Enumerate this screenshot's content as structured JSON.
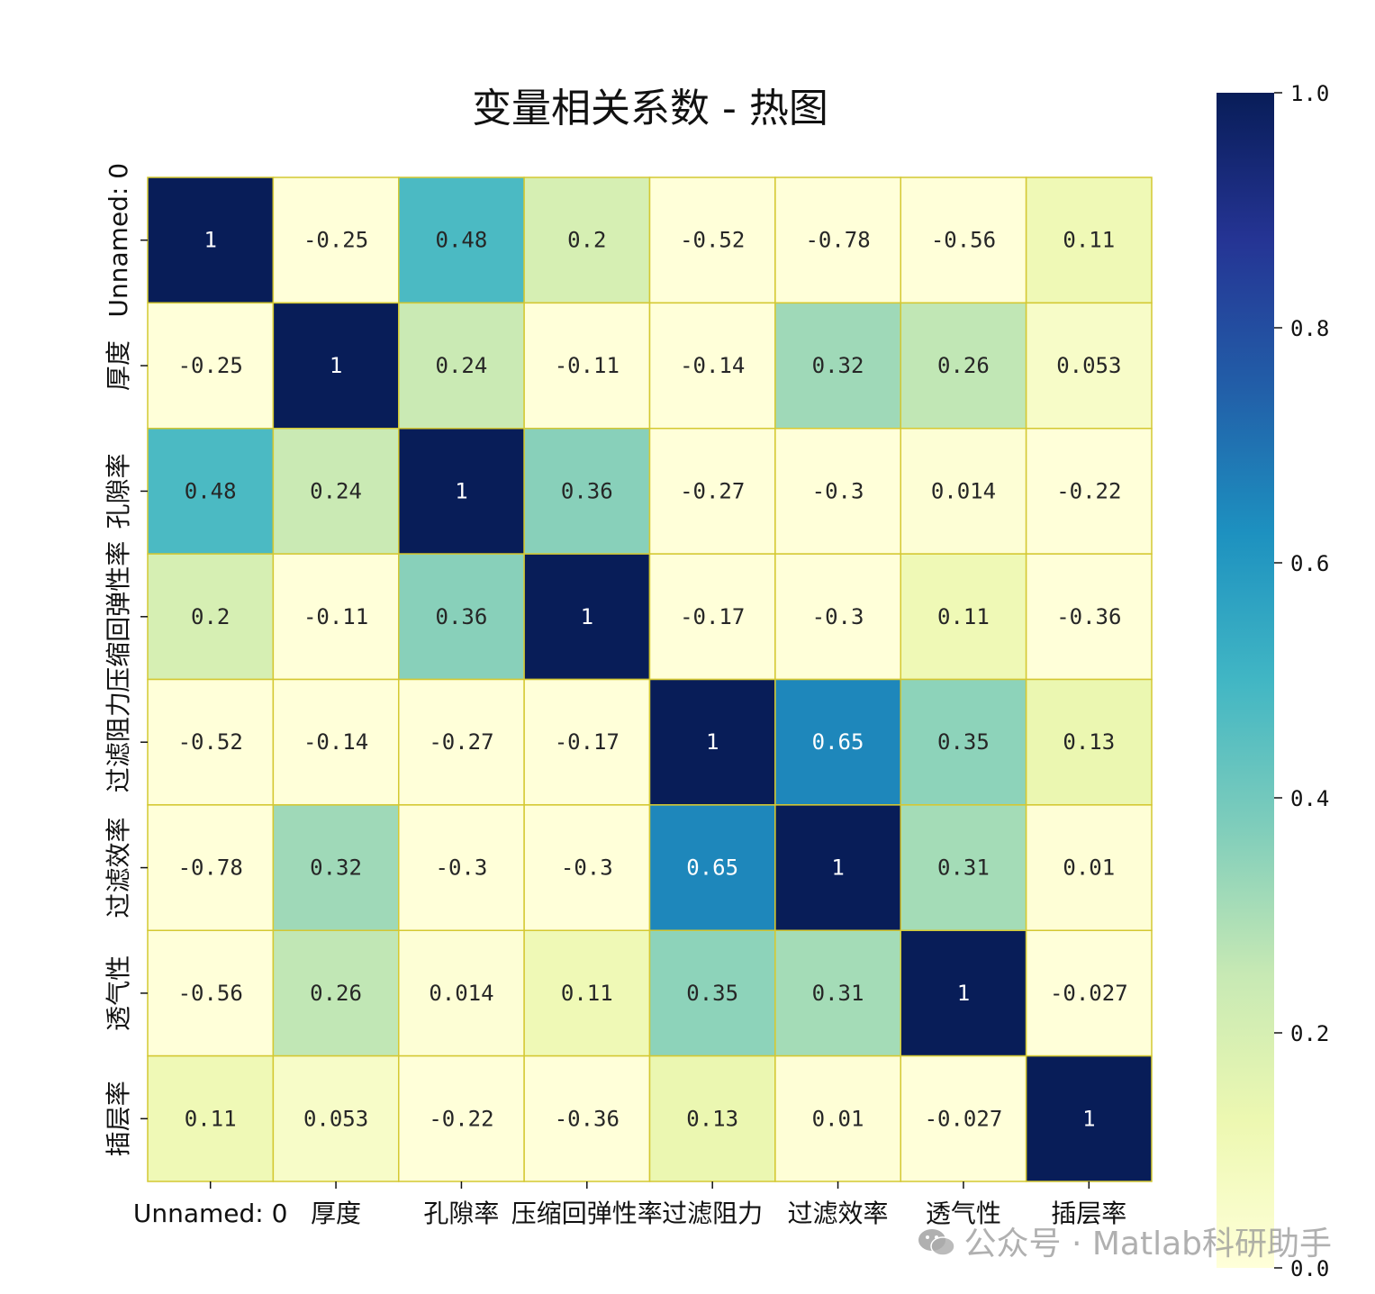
{
  "chart_data": {
    "type": "heatmap",
    "title": "变量相关系数 - 热图",
    "x_labels": [
      "Unnamed: 0",
      "厚度",
      "孔隙率",
      "压缩回弹性率",
      "过滤阻力",
      "过滤效率",
      "透气性",
      "插层率"
    ],
    "y_labels": [
      "Unnamed: 0",
      "厚度",
      "孔隙率",
      "压缩回弹性率",
      "过滤阻力",
      "过滤效率",
      "透气性",
      "插层率"
    ],
    "cell_labels": [
      [
        "1",
        "-0.25",
        "0.48",
        "0.2",
        "-0.52",
        "-0.78",
        "-0.56",
        "0.11"
      ],
      [
        "-0.25",
        "1",
        "0.24",
        "-0.11",
        "-0.14",
        "0.32",
        "0.26",
        "0.053"
      ],
      [
        "0.48",
        "0.24",
        "1",
        "0.36",
        "-0.27",
        "-0.3",
        "0.014",
        "-0.22"
      ],
      [
        "0.2",
        "-0.11",
        "0.36",
        "1",
        "-0.17",
        "-0.3",
        "0.11",
        "-0.36"
      ],
      [
        "-0.52",
        "-0.14",
        "-0.27",
        "-0.17",
        "1",
        "0.65",
        "0.35",
        "0.13"
      ],
      [
        "-0.78",
        "0.32",
        "-0.3",
        "-0.3",
        "0.65",
        "1",
        "0.31",
        "0.01"
      ],
      [
        "-0.56",
        "0.26",
        "0.014",
        "0.11",
        "0.35",
        "0.31",
        "1",
        "-0.027"
      ],
      [
        "0.11",
        "0.053",
        "-0.22",
        "-0.36",
        "0.13",
        "0.01",
        "-0.027",
        "1"
      ]
    ],
    "color_range": [
      0,
      1
    ],
    "colormap": "YlGnBu",
    "colorbar_ticks": [
      "1.0",
      "0.8",
      "0.6",
      "0.4",
      "0.2",
      "0.0"
    ],
    "colorbar_tick_values": [
      1.0,
      0.8,
      0.6,
      0.4,
      0.2,
      0.0
    ],
    "grid_color": "#d4c832"
  },
  "watermark": {
    "text": "公众号 · Matlab科研助手",
    "icon": "wechat-icon"
  }
}
